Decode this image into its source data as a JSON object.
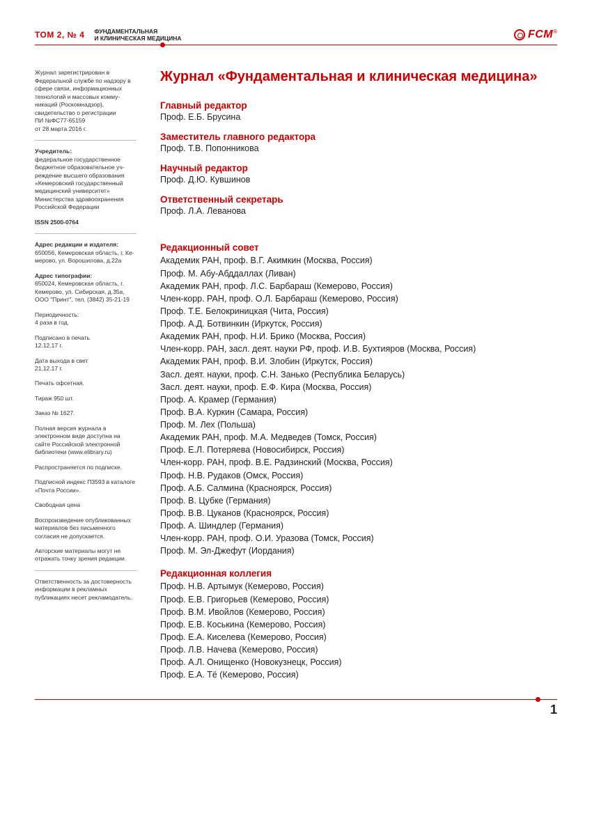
{
  "header": {
    "issue": "ТОМ 2, № 4",
    "journal_line1": "ФУНДАМЕНТАЛЬНАЯ",
    "journal_line2": "И КЛИНИЧЕСКАЯ МЕДИЦИНА",
    "logo_text": "FCM",
    "reg_mark": "®"
  },
  "sidebar": {
    "registration": "Журнал зарегистри­рован в Федеральной службе по надзору в сфере связи, инфор­мационных техноло­гий и массовых комму­никаций (Роскомнад­зор), свидетельство о регистрации",
    "registration_num": "ПИ №ФС77-65159",
    "registration_date": "от 28 марта 2016 г.",
    "founder_label": "Учредитель:",
    "founder": "федеральное государ­ственное бюджетное образовательное уч­реждение высшего об­разования «Кемеров­ский государственный медицинский универ­ситет» Министерства здравоохранения Рос­сийской Федерации",
    "issn_label": "ISSN 2500-0764",
    "addr_ed_label": "Адрес редакции и из­дателя:",
    "addr_ed": "650056, Кеме­ровская область, г. Ке­мерово, ул. Вороши­лова, д.22а",
    "addr_print_label": "Адрес типографии:",
    "addr_print": "650024, Кемеровская область, г. Кемерово, ул. Сибирская, д.35а, ООО \"Принт\", тел. (3842) 35-21-19",
    "periodicity_label": "Периодичность:",
    "periodicity": "4 раза в год.",
    "signed_label": "Подписано в печать",
    "signed": "12.12.17 г.",
    "release_label": "Дата выхода в свет",
    "release": "21.12.17 г.",
    "print_type": "Печать офсетная.",
    "circulation": "Тираж 950 шт.",
    "order": "Заказ № 1627.",
    "online": "Полная версия журна­ла в электронном ви­де доступна на сайте Российской электрон­ной библиотеки (www.elibrary.ru)",
    "distribution": "Распространяется по подписке.",
    "sub_index": "Подписной индекс П3593 в каталоге «Почта России».",
    "price": "Свободная цена",
    "reproduction": "Воспроизведение опубликованных материалов без пись­менного согласия не допускается.",
    "authors_note": "Авторские материалы могут не отражать точ­ку зрения редакции.",
    "ads_note": "Ответственность за достоверность инфор­мации в рекламных публикациях несет ре­кламодатель."
  },
  "main": {
    "title": "Журнал «Фундаментальная и клиническая медицина»",
    "roles": [
      {
        "h": "Главный редактор",
        "v": "Проф. Е.Б. Брусина"
      },
      {
        "h": "Заместитель главного редактора",
        "v": "Проф. Т.В. Попонникова"
      },
      {
        "h": "Научный редактор",
        "v": "Проф. Д.Ю. Кувшинов"
      },
      {
        "h": "Ответственный секретарь",
        "v": "Проф. Л.А. Леванова"
      }
    ],
    "board_h": "Редакционный совет",
    "board": [
      "Академик РАН, проф. В.Г. Акимкин (Москва, Россия)",
      "Проф. М. Абу-Абддаллах (Ливан)",
      "Академик РАН, проф. Л.С. Барбараш (Кемерово, Россия)",
      "Член-корр. РАН, проф. О.Л. Барбараш (Кемерово, Россия)",
      "Проф. Т.Е. Белокриницкая (Чита, Россия)",
      "Проф. А.Д. Ботвинкин (Иркутск, Россия)",
      "Академик РАН, проф. Н.И. Брико (Москва, Россия)",
      "Член-корр. РАН, засл. деят. науки РФ, проф. И.В. Бухтияров (Москва, Россия)",
      "Академик РАН, проф. В.И. Злобин (Иркутск, Россия)",
      "Засл. деят. науки, проф. С.Н. Занько (Республика Беларусь)",
      "Засл. деят. науки, проф. Е.Ф. Кира (Москва, Россия)",
      "Проф. А. Крамер (Германия)",
      "Проф. В.А. Куркин (Самара, Россия)",
      "Проф. М. Лех (Польша)",
      "Академик РАН, проф. М.А. Медведев (Томск, Россия)",
      "Проф. Е.Л. Потеряева (Новосибирск, Россия)",
      "Член-корр. РАН, проф. В.Е. Радзинский (Москва, Россия)",
      "Проф. Н.В. Рудаков (Омск, Россия)",
      "Проф. А.Б. Салмина (Красноярск, Россия)",
      "Проф. В. Цубке (Германия)",
      "Проф. В.В. Цуканов (Красноярск, Россия)",
      "Проф. А. Шиндлер (Германия)",
      "Член-корр. РАН, проф. О.И. Уразова (Томск, Россия)",
      "Проф. М. Эл-Джефут (Иордания)"
    ],
    "college_h": "Редакционная коллегия",
    "college": [
      "Проф. Н.В. Артымук (Кемерово, Россия)",
      "Проф. Е.В. Григорьев (Кемерово, Россия)",
      "Проф. В.М. Ивойлов (Кемерово, Россия)",
      "Проф. Е.В. Коськина (Кемерово, Россия)",
      "Проф. Е.А. Киселева (Кемерово, Россия)",
      "Проф. Л.В. Начева (Кемерово, Россия)",
      "Проф. А.Л. Онищенко (Новокузнецк, Россия)",
      "Проф. Е.А. Тё (Кемерово, Россия)"
    ]
  },
  "page_number": "1",
  "colors": {
    "accent": "#c00"
  }
}
